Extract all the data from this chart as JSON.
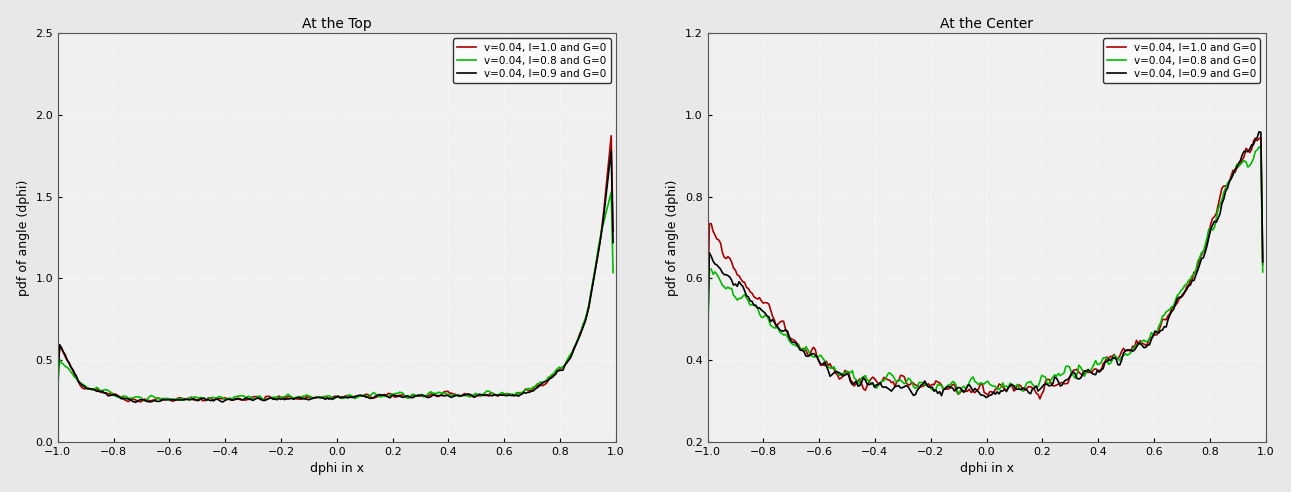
{
  "title_left": "At the Top",
  "title_right": "At the Center",
  "xlabel": "dphi in x",
  "ylabel_left": "pdf of angle (dphi)",
  "ylabel_right": "pdf of angle (dphi)",
  "legend_labels": [
    "v=0.04, l=1.0 and G=0",
    "v=0.04, l=0.8 and G=0",
    "v=0.04, l=0.9 and G=0"
  ],
  "colors": [
    "#aa0000",
    "#00bb00",
    "#000000"
  ],
  "left_ylim": [
    0,
    2.5
  ],
  "right_ylim": [
    0.2,
    1.2
  ],
  "xlim": [
    -1,
    1
  ],
  "xticks": [
    -1,
    -0.8,
    -0.6,
    -0.4,
    -0.2,
    0,
    0.2,
    0.4,
    0.6,
    0.8,
    1
  ],
  "left_yticks": [
    0,
    0.5,
    1.0,
    1.5,
    2.0,
    2.5
  ],
  "right_yticks": [
    0.2,
    0.4,
    0.6,
    0.8,
    1.0,
    1.2
  ],
  "plot_bg": "#f0f0f0",
  "fig_bg": "#e8e8e8",
  "grid_color": "#ffffff",
  "linewidth": 1.2,
  "figsize": [
    12.91,
    4.92
  ],
  "dpi": 100
}
